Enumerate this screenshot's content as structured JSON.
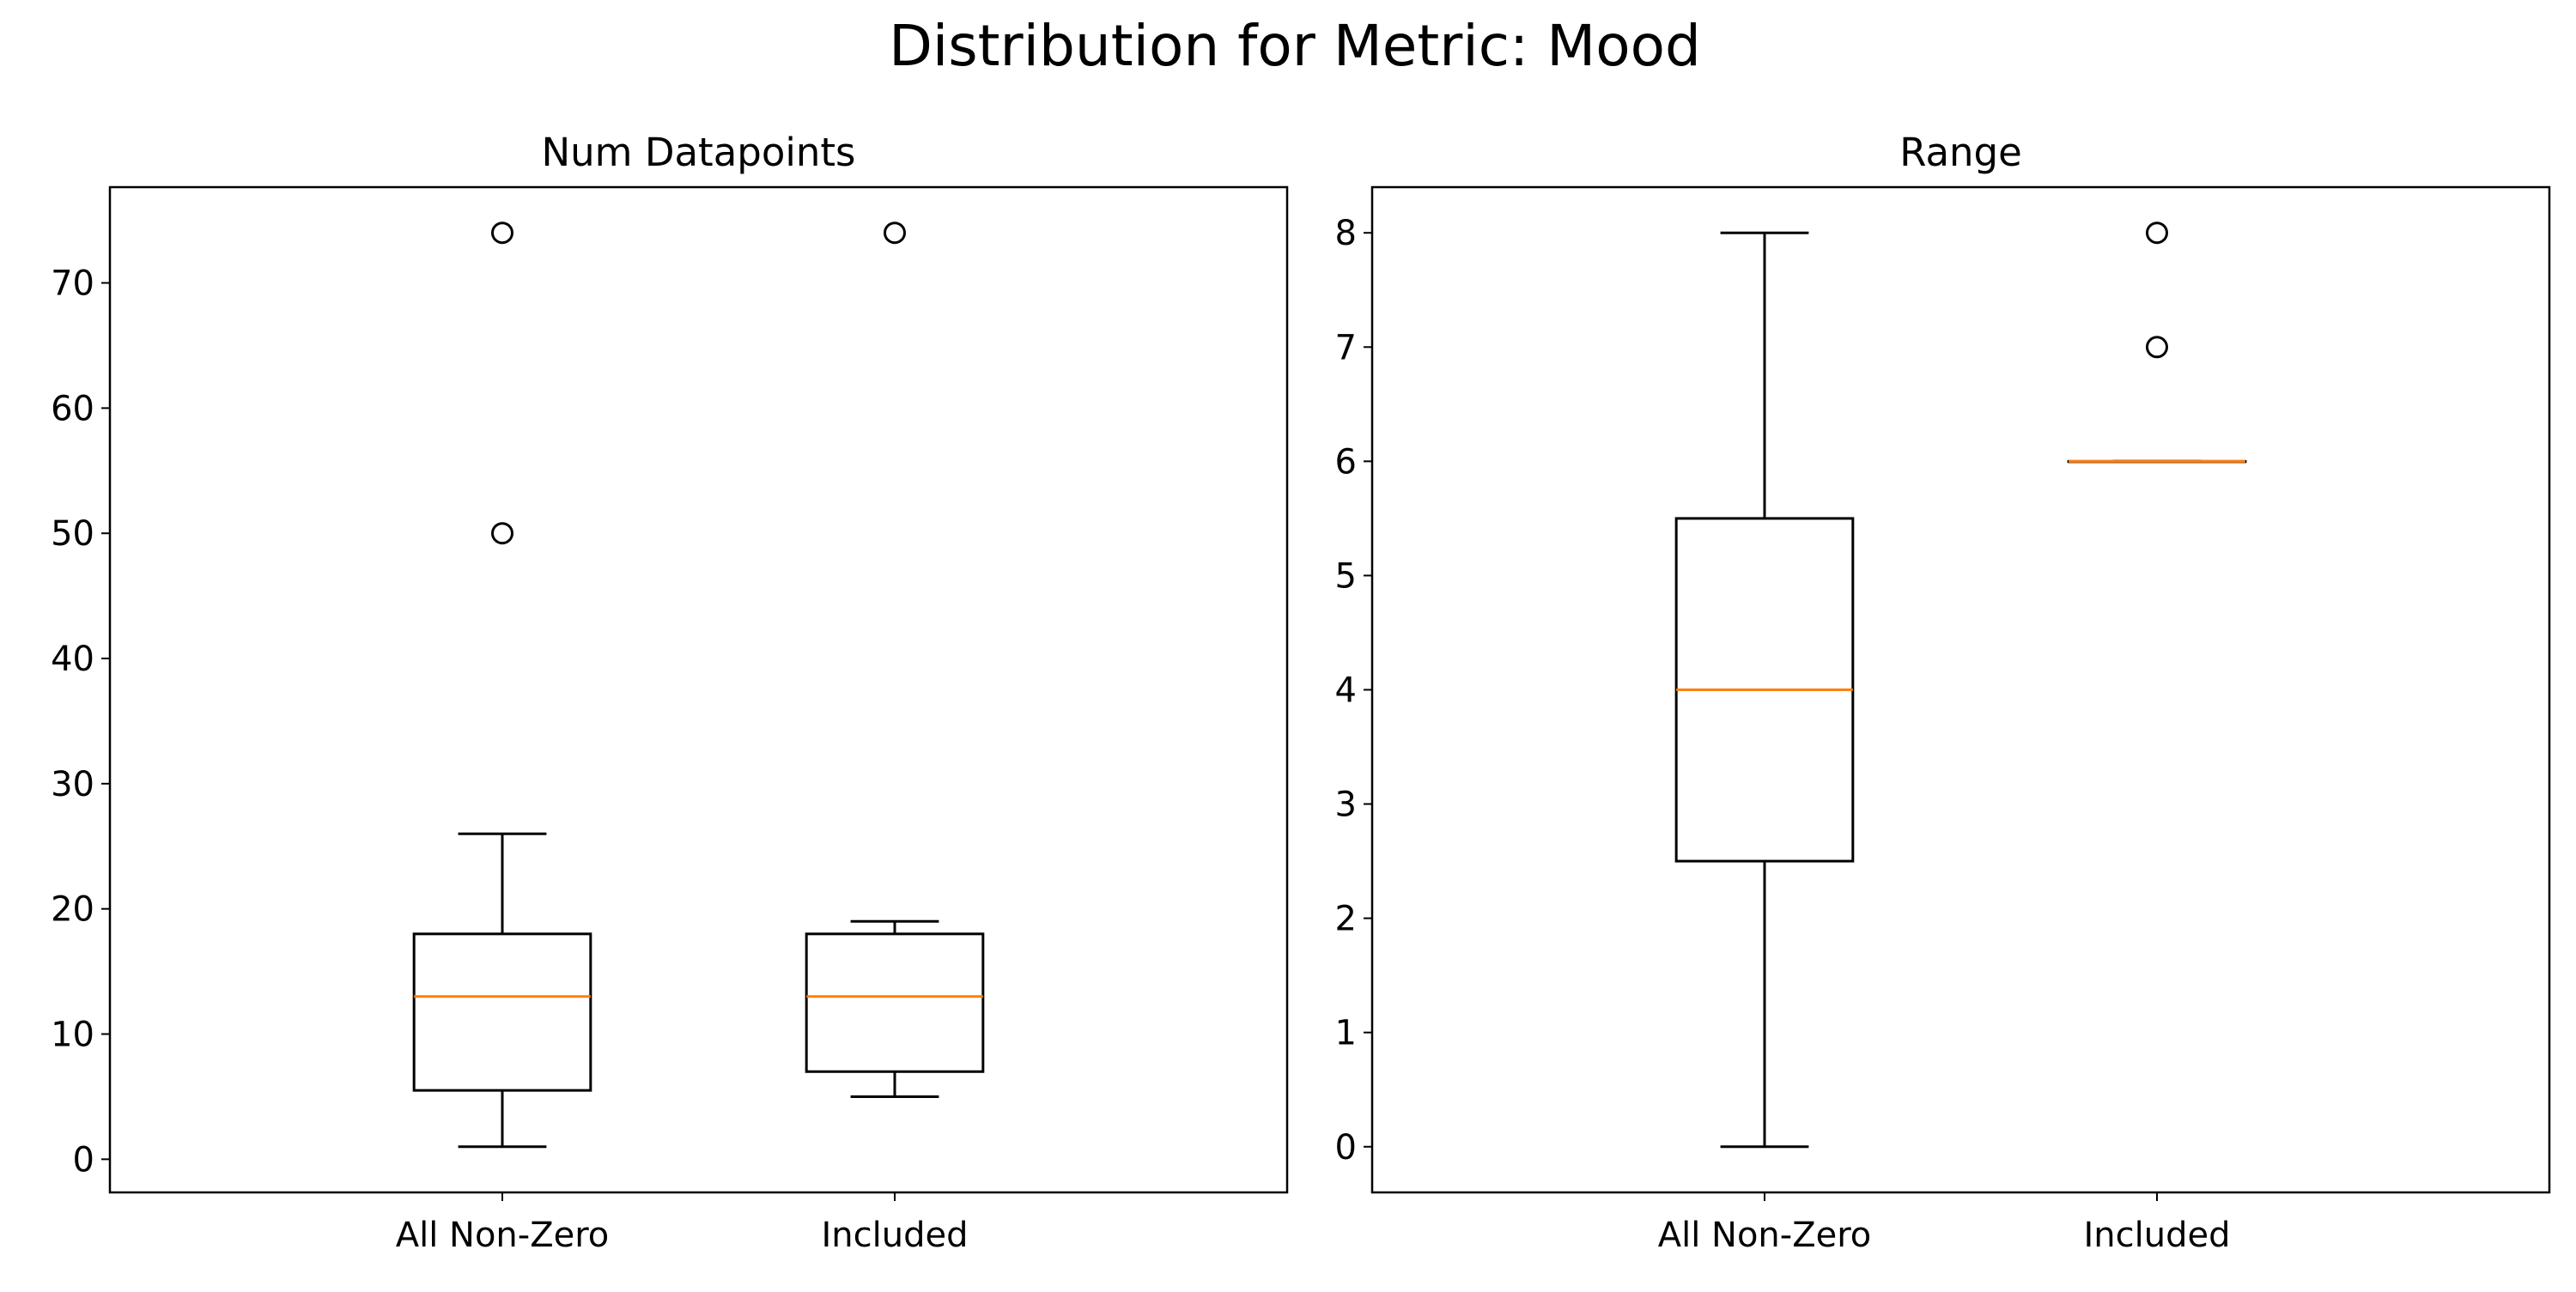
{
  "figure": {
    "title": "Distribution for Metric: Mood"
  },
  "colors": {
    "median": "#ff7f0e",
    "box": "#000000",
    "background": "#ffffff"
  },
  "chart_data": [
    {
      "type": "box",
      "title": "Num Datapoints",
      "xlabel": "",
      "ylabel": "",
      "categories": [
        "All Non-Zero",
        "Included"
      ],
      "ylim": [
        -2.65,
        77.65
      ],
      "yticks": [
        0,
        10,
        20,
        30,
        40,
        50,
        60,
        70
      ],
      "grid": false,
      "boxes": [
        {
          "label": "All Non-Zero",
          "whisker_low": 1,
          "q1": 5.5,
          "median": 13,
          "q3": 18,
          "whisker_high": 26,
          "outliers": [
            50,
            74
          ]
        },
        {
          "label": "Included",
          "whisker_low": 5,
          "q1": 7,
          "median": 13,
          "q3": 18,
          "whisker_high": 19,
          "outliers": [
            74
          ]
        }
      ]
    },
    {
      "type": "box",
      "title": "Range",
      "xlabel": "",
      "ylabel": "",
      "categories": [
        "All Non-Zero",
        "Included"
      ],
      "ylim": [
        -0.4,
        8.4
      ],
      "yticks": [
        0,
        1,
        2,
        3,
        4,
        5,
        6,
        7,
        8
      ],
      "grid": false,
      "boxes": [
        {
          "label": "All Non-Zero",
          "whisker_low": 0,
          "q1": 2.5,
          "median": 4,
          "q3": 5.5,
          "whisker_high": 8,
          "outliers": []
        },
        {
          "label": "Included",
          "whisker_low": 6,
          "q1": 6,
          "median": 6,
          "q3": 6,
          "whisker_high": 6,
          "outliers": [
            7,
            8
          ]
        }
      ]
    }
  ]
}
